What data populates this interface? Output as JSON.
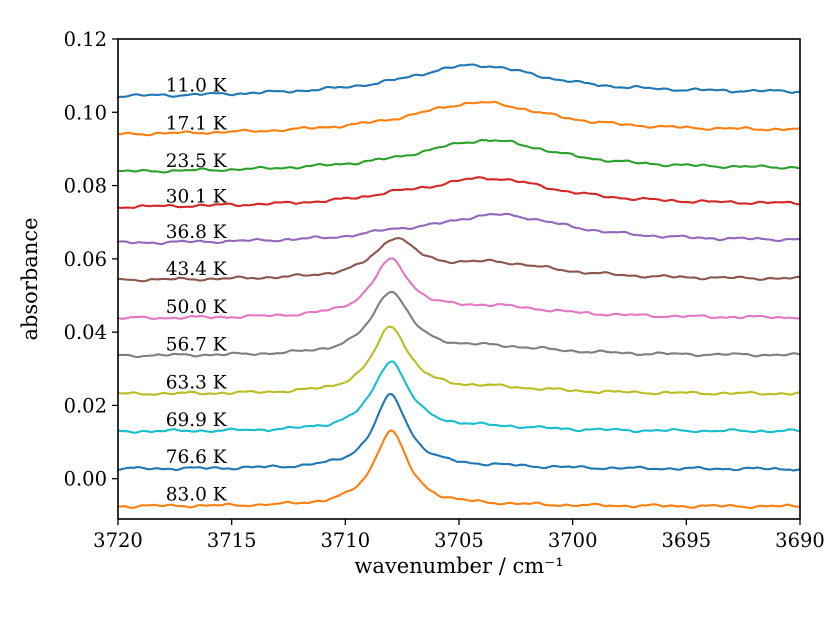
{
  "figure": {
    "background": "#ffffff",
    "description": "Stacked temperature-dependent absorbance spectra"
  },
  "chart_data": {
    "type": "line",
    "title": "",
    "xlabel": "wavenumber / cm⁻¹",
    "ylabel": "absorbance",
    "grid": false,
    "legend": "inline-labels",
    "x_axis": {
      "left": 3720,
      "right": 3690,
      "reversed": true,
      "ticks": [
        3720,
        3715,
        3710,
        3705,
        3700,
        3695,
        3690
      ]
    },
    "y_axis": {
      "min": -0.011,
      "max": 0.12,
      "ticks": [
        0.0,
        0.02,
        0.04,
        0.06,
        0.08,
        0.1,
        0.12
      ]
    },
    "series_label_x": 3717.9,
    "narrow_peak_position_cm1": 3708,
    "broad_peak_position_cm1": 3704,
    "series": [
      {
        "label": "11.0 K",
        "temperature_K": 11.0,
        "color": "#1f77b4",
        "offset": 0.104,
        "tilt": 0.0012,
        "peaks": [
          {
            "center": 3704.3,
            "amplitude": 0.0082,
            "fwhm": 7.5
          }
        ]
      },
      {
        "label": "17.1 K",
        "temperature_K": 17.1,
        "color": "#ff7f0e",
        "offset": 0.0936,
        "tilt": 0.0012,
        "peaks": [
          {
            "center": 3704.1,
            "amplitude": 0.0084,
            "fwhm": 7.5
          }
        ]
      },
      {
        "label": "23.5 K",
        "temperature_K": 23.5,
        "color": "#2ca02c",
        "offset": 0.0834,
        "tilt": 0.001,
        "peaks": [
          {
            "center": 3703.8,
            "amplitude": 0.0084,
            "fwhm": 7.5
          }
        ]
      },
      {
        "label": "30.1 K",
        "temperature_K": 30.1,
        "color": "#d62728",
        "offset": 0.0738,
        "tilt": 0.0009,
        "peaks": [
          {
            "center": 3703.8,
            "amplitude": 0.0077,
            "fwhm": 7.5
          },
          {
            "center": 3708.0,
            "amplitude": 0.0008,
            "fwhm": 2.0
          }
        ]
      },
      {
        "label": "36.8 K",
        "temperature_K": 36.8,
        "color": "#9467bd",
        "offset": 0.064,
        "tilt": 0.0007,
        "peaks": [
          {
            "center": 3703.3,
            "amplitude": 0.0076,
            "fwhm": 7.5
          },
          {
            "center": 3708.0,
            "amplitude": 0.001,
            "fwhm": 2.0
          }
        ]
      },
      {
        "label": "43.4 K",
        "temperature_K": 43.4,
        "color": "#8c564b",
        "offset": 0.054,
        "tilt": 0.0003,
        "peaks": [
          {
            "center": 3703.5,
            "amplitude": 0.0045,
            "fwhm": 7.0
          },
          {
            "center": 3707.8,
            "amplitude": 0.01,
            "fwhm": 2.2
          }
        ]
      },
      {
        "label": "50.0 K",
        "temperature_K": 50.0,
        "color": "#e377c2",
        "offset": 0.0436,
        "tilt": 0.0002,
        "peaks": [
          {
            "center": 3703.5,
            "amplitude": 0.003,
            "fwhm": 7.0
          },
          {
            "center": 3708.0,
            "amplitude": 0.015,
            "fwhm": 2.0
          }
        ]
      },
      {
        "label": "56.7 K",
        "temperature_K": 56.7,
        "color": "#7f7f7f",
        "offset": 0.0334,
        "tilt": 0.0002,
        "peaks": [
          {
            "center": 3703.5,
            "amplitude": 0.0022,
            "fwhm": 7.0
          },
          {
            "center": 3708.0,
            "amplitude": 0.017,
            "fwhm": 2.0
          }
        ]
      },
      {
        "label": "63.3 K",
        "temperature_K": 63.3,
        "color": "#bcbd22",
        "offset": 0.023,
        "tilt": 0.0001,
        "peaks": [
          {
            "center": 3703.5,
            "amplitude": 0.0016,
            "fwhm": 6.5
          },
          {
            "center": 3708.0,
            "amplitude": 0.018,
            "fwhm": 1.9
          }
        ]
      },
      {
        "label": "69.9 K",
        "temperature_K": 69.9,
        "color": "#17becf",
        "offset": 0.0128,
        "tilt": 0.0001,
        "peaks": [
          {
            "center": 3703.5,
            "amplitude": 0.001,
            "fwhm": 6.0
          },
          {
            "center": 3708.0,
            "amplitude": 0.019,
            "fwhm": 1.9
          }
        ]
      },
      {
        "label": "76.6 K",
        "temperature_K": 76.6,
        "color": "#1f77b4",
        "offset": 0.0026,
        "tilt": 0.0,
        "peaks": [
          {
            "center": 3703.5,
            "amplitude": 0.0006,
            "fwhm": 6.0
          },
          {
            "center": 3708.0,
            "amplitude": 0.02,
            "fwhm": 1.8
          }
        ]
      },
      {
        "label": "83.0 K",
        "temperature_K": 83.0,
        "color": "#ff7f0e",
        "offset": -0.0076,
        "tilt": 0.0,
        "peaks": [
          {
            "center": 3703.5,
            "amplitude": 0.0003,
            "fwhm": 6.0
          },
          {
            "center": 3708.0,
            "amplitude": 0.0206,
            "fwhm": 1.8
          }
        ]
      }
    ]
  }
}
